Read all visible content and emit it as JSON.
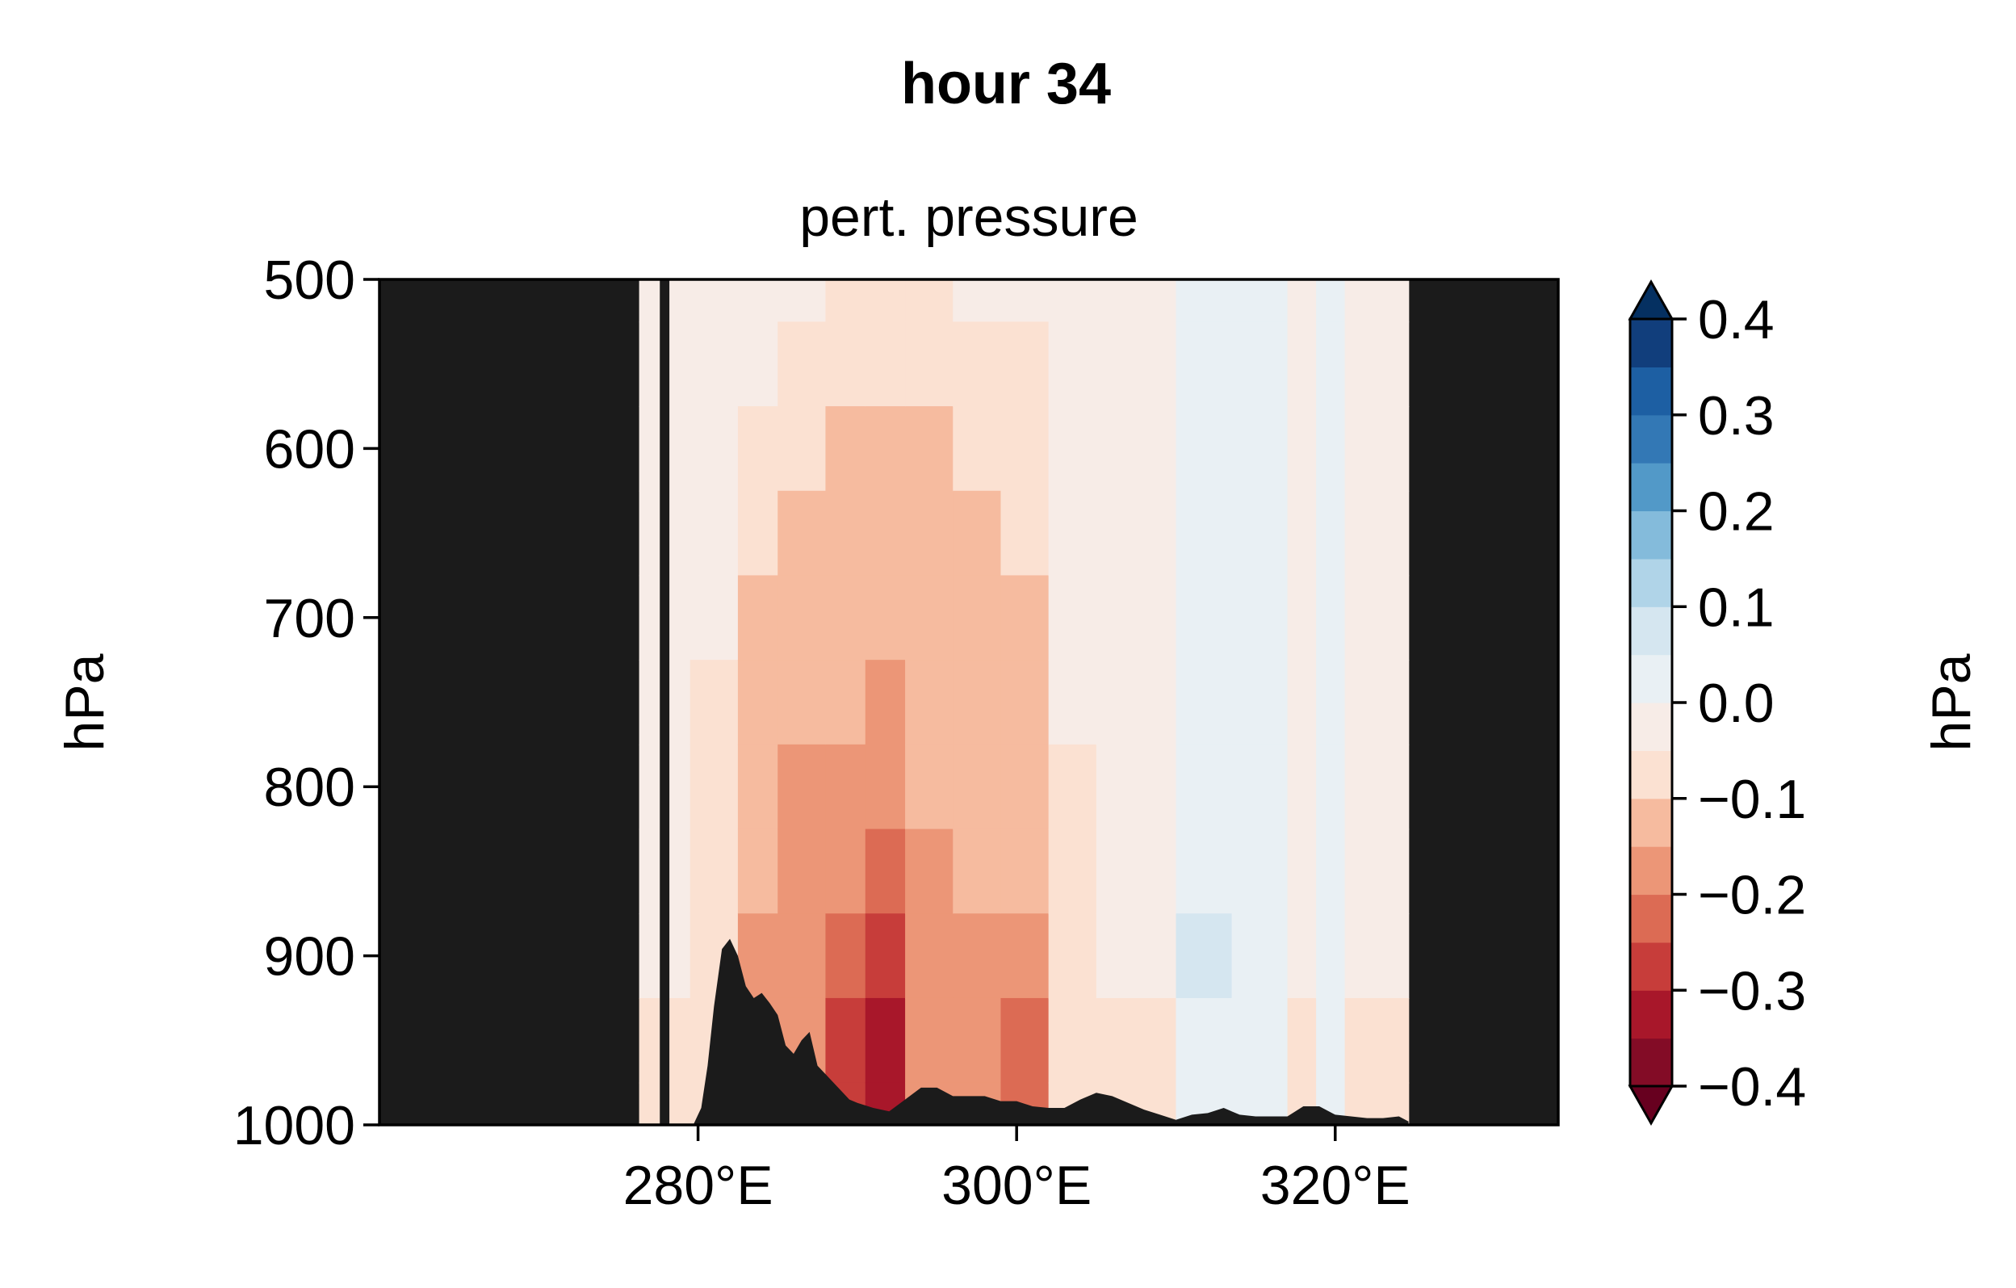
{
  "chart_data": {
    "type": "heatmap",
    "suptitle": "hour 34",
    "title": "pert. pressure",
    "xlabel": "",
    "ylabel": "hPa",
    "xlim": [
      260,
      334
    ],
    "ylim": [
      1000,
      500
    ],
    "y_inverted": true,
    "xticks": [
      280,
      300,
      320
    ],
    "xtick_labels": [
      "280°E",
      "300°E",
      "320°E"
    ],
    "yticks": [
      500,
      600,
      700,
      800,
      900,
      1000
    ],
    "ytick_labels": [
      "500",
      "600",
      "700",
      "800",
      "900",
      "1000"
    ],
    "missing_color": "#1b1b1b",
    "data_region_lon": [
      276.3,
      324.6
    ],
    "missing_strip_lon": [
      277.6,
      278.2
    ],
    "colorbar": {
      "label": "hPa",
      "extend": "both",
      "levels": [
        -0.4,
        -0.35,
        -0.3,
        -0.25,
        -0.2,
        -0.15,
        -0.1,
        -0.05,
        0.0,
        0.05,
        0.1,
        0.15,
        0.2,
        0.25,
        0.3,
        0.35,
        0.4
      ],
      "colors": [
        "#830c26",
        "#a8172a",
        "#c73d3a",
        "#dc6b54",
        "#ec9677",
        "#f6bb9f",
        "#fbe1d2",
        "#f7ece7",
        "#e9f0f4",
        "#d5e6f0",
        "#b0d4e8",
        "#84bbdb",
        "#5299c8",
        "#3378b5",
        "#1d5fa3",
        "#113e7c"
      ],
      "under_color": "#67001f",
      "over_color": "#053061",
      "ticks": [
        -0.4,
        -0.3,
        -0.2,
        -0.1,
        0.0,
        0.1,
        0.2,
        0.3,
        0.4
      ],
      "tick_labels": [
        "−0.4",
        "−0.3",
        "−0.2",
        "−0.1",
        "0.0",
        "0.1",
        "0.2",
        "0.3",
        "0.4"
      ]
    },
    "field": {
      "pressure_levels": [
        500,
        550,
        600,
        650,
        700,
        750,
        800,
        850,
        900,
        950,
        1000
      ],
      "lon_bands": [
        {
          "lon": [
            276.3,
            279.5
          ],
          "values": [
            -0.02,
            -0.02,
            -0.02,
            -0.02,
            -0.02,
            -0.02,
            -0.02,
            -0.03,
            -0.04,
            -0.06,
            -0.06
          ]
        },
        {
          "lon": [
            279.5,
            282.5
          ],
          "values": [
            -0.03,
            -0.03,
            -0.03,
            -0.03,
            -0.04,
            -0.06,
            -0.07,
            -0.08,
            -0.09,
            -0.1,
            -0.1
          ]
        },
        {
          "lon": [
            282.5,
            285.0
          ],
          "values": [
            -0.04,
            -0.05,
            -0.06,
            -0.08,
            -0.11,
            -0.12,
            -0.14,
            -0.15,
            -0.16,
            -0.17,
            -0.17
          ]
        },
        {
          "lon": [
            285.0,
            288.0
          ],
          "values": [
            -0.05,
            -0.07,
            -0.09,
            -0.12,
            -0.13,
            -0.15,
            -0.16,
            -0.17,
            -0.18,
            -0.19,
            -0.19
          ]
        },
        {
          "lon": [
            288.0,
            290.5
          ],
          "values": [
            -0.06,
            -0.08,
            -0.11,
            -0.12,
            -0.14,
            -0.15,
            -0.17,
            -0.19,
            -0.21,
            -0.26,
            -0.26
          ]
        },
        {
          "lon": [
            290.5,
            293.0
          ],
          "values": [
            -0.07,
            -0.09,
            -0.12,
            -0.14,
            -0.15,
            -0.17,
            -0.2,
            -0.23,
            -0.27,
            -0.32,
            -0.32
          ]
        },
        {
          "lon": [
            293.0,
            296.0
          ],
          "values": [
            -0.06,
            -0.08,
            -0.11,
            -0.12,
            -0.12,
            -0.13,
            -0.14,
            -0.16,
            -0.17,
            -0.2,
            -0.2
          ]
        },
        {
          "lon": [
            296.0,
            299.0
          ],
          "values": [
            -0.05,
            -0.07,
            -0.09,
            -0.11,
            -0.12,
            -0.12,
            -0.13,
            -0.14,
            -0.16,
            -0.18,
            -0.18
          ]
        },
        {
          "lon": [
            299.0,
            302.0
          ],
          "values": [
            -0.04,
            -0.06,
            -0.08,
            -0.1,
            -0.11,
            -0.12,
            -0.13,
            -0.15,
            -0.17,
            -0.22,
            -0.22
          ]
        },
        {
          "lon": [
            302.0,
            305.0
          ],
          "values": [
            -0.01,
            -0.02,
            -0.03,
            -0.04,
            -0.05,
            -0.05,
            -0.06,
            -0.06,
            -0.07,
            -0.08,
            -0.08
          ]
        },
        {
          "lon": [
            305.0,
            310.0
          ],
          "values": [
            -0.01,
            -0.01,
            -0.02,
            -0.02,
            -0.03,
            -0.03,
            -0.03,
            -0.04,
            -0.05,
            -0.06,
            -0.06
          ]
        },
        {
          "lon": [
            310.0,
            313.5
          ],
          "values": [
            0.01,
            0.01,
            0.02,
            0.02,
            0.02,
            0.02,
            0.03,
            0.04,
            0.05,
            0.04,
            0.04
          ]
        },
        {
          "lon": [
            313.5,
            317.0
          ],
          "values": [
            0.01,
            0.01,
            0.02,
            0.02,
            0.02,
            0.02,
            0.03,
            0.04,
            0.03,
            0.02,
            0.02
          ]
        },
        {
          "lon": [
            317.0,
            318.8
          ],
          "values": [
            -0.01,
            -0.01,
            -0.01,
            -0.01,
            -0.02,
            -0.02,
            -0.03,
            -0.04,
            -0.05,
            -0.06,
            -0.06
          ]
        },
        {
          "lon": [
            318.8,
            320.6
          ],
          "values": [
            0.01,
            0.01,
            0.01,
            0.01,
            0.02,
            0.02,
            0.02,
            0.02,
            0.02,
            0.02,
            0.02
          ]
        },
        {
          "lon": [
            320.6,
            324.6
          ],
          "values": [
            -0.01,
            -0.01,
            -0.01,
            -0.02,
            -0.02,
            -0.02,
            -0.03,
            -0.04,
            -0.05,
            -0.06,
            -0.06
          ]
        }
      ]
    },
    "terrain_profile": {
      "lon": [
        279.7,
        280.2,
        280.6,
        281.0,
        281.5,
        282.0,
        282.5,
        283.0,
        283.5,
        284.0,
        284.5,
        285.0,
        285.5,
        286.0,
        286.5,
        287.0,
        287.5,
        288.0,
        288.5,
        289.0,
        289.5,
        290.0,
        291.0,
        292.0,
        293.0,
        294.0,
        295.0,
        296.0,
        297.0,
        298.0,
        299.0,
        300.0,
        301.0,
        302.0,
        303.0,
        304.0,
        305.0,
        306.0,
        307.0,
        308.0,
        309.0,
        310.0,
        311.0,
        312.0,
        313.0,
        314.0,
        315.0,
        316.0,
        317.0,
        318.0,
        319.0,
        320.0,
        321.0,
        322.0,
        323.0,
        324.0,
        324.6
      ],
      "pressure": [
        1000,
        990,
        965,
        930,
        896,
        890,
        900,
        918,
        925,
        922,
        928,
        935,
        953,
        958,
        950,
        945,
        965,
        970,
        975,
        980,
        985,
        987,
        990,
        992,
        985,
        978,
        978,
        983,
        983,
        983,
        986,
        986,
        989,
        990,
        990,
        985,
        981,
        983,
        987,
        991,
        994,
        997,
        994,
        993,
        990,
        994,
        995,
        995,
        995,
        989,
        989,
        994,
        995,
        996,
        996,
        995,
        998
      ]
    }
  }
}
